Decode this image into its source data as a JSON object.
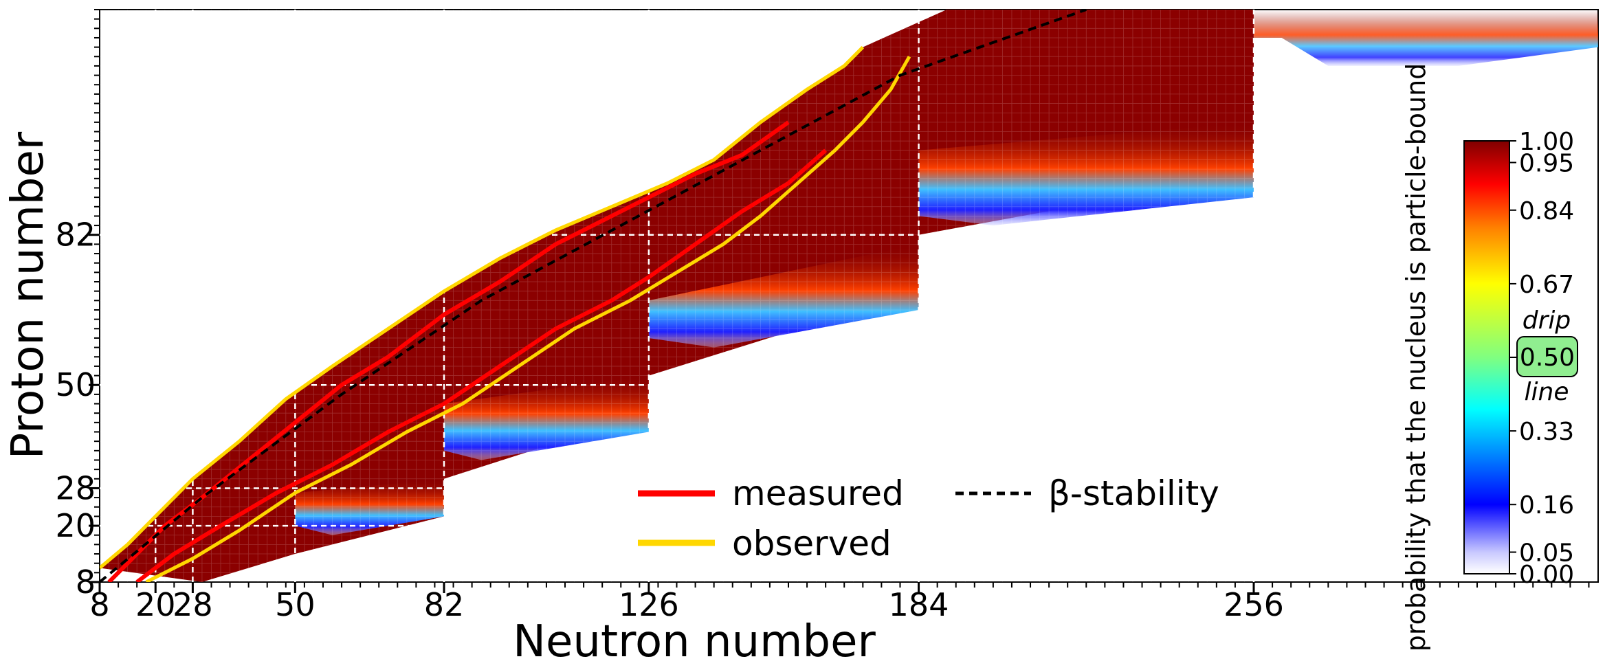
{
  "chart_data": {
    "type": "heatmap",
    "title": "",
    "xlabel": "Neutron number",
    "ylabel": "Proton number",
    "xlim": [
      8,
      330
    ],
    "ylim": [
      8,
      130
    ],
    "x_ticks": [
      8,
      20,
      28,
      50,
      82,
      126,
      184,
      256
    ],
    "x_tick_labels": [
      "8",
      "20",
      "28",
      "50",
      "82",
      "126",
      "184",
      "256"
    ],
    "y_ticks": [
      8,
      20,
      28,
      50,
      82
    ],
    "y_tick_labels": [
      "8",
      "20",
      "28",
      "50",
      "82"
    ],
    "magic_numbers_N": [
      20,
      28,
      50,
      82,
      126,
      184,
      256
    ],
    "magic_numbers_Z": [
      20,
      28,
      50,
      82
    ],
    "heatmap_description": "probability that the nucleus is particle-bound (0-1) over the N-Z plane",
    "colorbar": {
      "label": "probability that the nucleus is particle-bound",
      "min": 0.0,
      "max": 1.0,
      "ticks": [
        0.0,
        0.05,
        0.16,
        0.33,
        0.5,
        0.67,
        0.84,
        0.95,
        1.0
      ],
      "tick_labels": [
        "0.00",
        "0.05",
        "0.16",
        "0.33",
        "0.50",
        "0.67",
        "0.84",
        "0.95",
        "1.00"
      ],
      "drip_label_top": "drip",
      "drip_label_bottom": "line",
      "drip_value": "0.50",
      "colors": [
        "#ffffff",
        "#c8c8ff",
        "#0000ff",
        "#0080ff",
        "#00ffff",
        "#80ff80",
        "#ffff00",
        "#ff8000",
        "#ff0000",
        "#800000"
      ]
    },
    "series": [
      {
        "name": "measured",
        "color": "#ff0000",
        "style": "solid",
        "upper_boundary": [
          [
            10,
            8
          ],
          [
            16,
            14
          ],
          [
            22,
            20
          ],
          [
            30,
            26
          ],
          [
            40,
            34
          ],
          [
            50,
            42
          ],
          [
            60,
            50
          ],
          [
            70,
            56
          ],
          [
            82,
            65
          ],
          [
            94,
            72
          ],
          [
            106,
            80
          ],
          [
            118,
            86
          ],
          [
            126,
            90
          ],
          [
            136,
            95
          ],
          [
            146,
            99
          ],
          [
            156,
            106
          ]
        ],
        "lower_boundary": [
          [
            16,
            8
          ],
          [
            24,
            14
          ],
          [
            34,
            20
          ],
          [
            46,
            27
          ],
          [
            58,
            33
          ],
          [
            70,
            40
          ],
          [
            82,
            46
          ],
          [
            94,
            54
          ],
          [
            106,
            62
          ],
          [
            118,
            68
          ],
          [
            126,
            73
          ],
          [
            136,
            80
          ],
          [
            146,
            87
          ],
          [
            156,
            93
          ],
          [
            164,
            100
          ]
        ]
      },
      {
        "name": "observed",
        "color": "#ffd700",
        "style": "solid",
        "upper_boundary": [
          [
            8,
            11
          ],
          [
            14,
            16
          ],
          [
            20,
            22
          ],
          [
            28,
            30
          ],
          [
            38,
            38
          ],
          [
            48,
            47
          ],
          [
            58,
            54
          ],
          [
            70,
            62
          ],
          [
            82,
            70
          ],
          [
            94,
            77
          ],
          [
            106,
            83
          ],
          [
            118,
            88
          ],
          [
            130,
            93
          ],
          [
            140,
            98
          ],
          [
            150,
            106
          ],
          [
            160,
            113
          ],
          [
            168,
            118
          ],
          [
            172,
            122
          ]
        ],
        "lower_boundary": [
          [
            18,
            8
          ],
          [
            28,
            13
          ],
          [
            38,
            19
          ],
          [
            50,
            27
          ],
          [
            62,
            33
          ],
          [
            74,
            40
          ],
          [
            86,
            46
          ],
          [
            98,
            54
          ],
          [
            110,
            62
          ],
          [
            122,
            68
          ],
          [
            132,
            74
          ],
          [
            142,
            80
          ],
          [
            150,
            86
          ],
          [
            158,
            93
          ],
          [
            166,
            100
          ],
          [
            172,
            106
          ],
          [
            178,
            113
          ],
          [
            182,
            120
          ]
        ]
      },
      {
        "name": "β-stability",
        "color": "#000000",
        "style": "dashed",
        "points": [
          [
            8,
            8
          ],
          [
            30,
            26
          ],
          [
            60,
            48
          ],
          [
            90,
            68
          ],
          [
            120,
            84
          ],
          [
            150,
            100
          ],
          [
            180,
            116
          ],
          [
            220,
            130
          ]
        ]
      }
    ],
    "legend": {
      "placement": "bottom-center",
      "entries": [
        {
          "label": "measured",
          "color": "#ff0000",
          "style": "solid"
        },
        {
          "label": "observed",
          "color": "#ffd700",
          "style": "solid"
        },
        {
          "label": "β-stability",
          "color": "#000000",
          "style": "dashed"
        }
      ]
    }
  }
}
